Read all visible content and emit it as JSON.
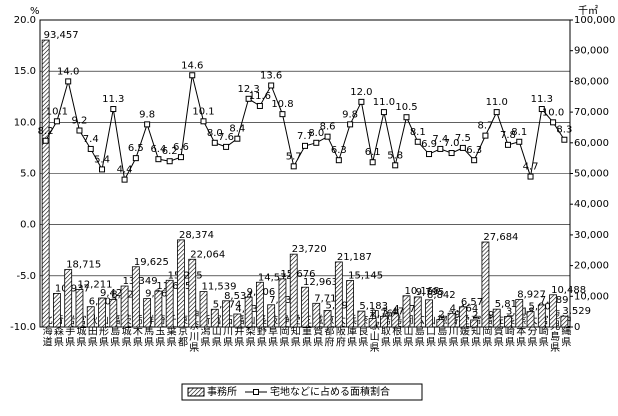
{
  "chart_data": {
    "type": "bar_line",
    "y_unit": "%",
    "y2_unit": "千㎡",
    "categories": [
      "北海道",
      "青森県",
      "岩手県",
      "宮城県",
      "秋田県",
      "山形県",
      "福島県",
      "茨城県",
      "栃木県",
      "群馬県",
      "埼玉県",
      "千葉県",
      "東京都",
      "神奈川県",
      "新潟県",
      "富山県",
      "石川県",
      "福井県",
      "山梨県",
      "長野県",
      "岐阜県",
      "静岡県",
      "愛知県",
      "三重県",
      "滋賀県",
      "京都府",
      "大阪府",
      "兵庫県",
      "奈良県",
      "和歌山県",
      "鳥取県",
      "島根県",
      "岡山県",
      "広島県",
      "山口県",
      "徳島県",
      "香川県",
      "愛媛県",
      "高知県",
      "福岡県",
      "佐賀県",
      "長崎県",
      "熊本県",
      "大分県",
      "宮崎県",
      "鹿児島県",
      "沖縄県"
    ],
    "series": [
      {
        "name": "事務所",
        "type": "bar",
        "axis": "y2",
        "color": "#000000",
        "values": [
          93457,
          10937,
          18715,
          12211,
          6607,
          9428,
          8925,
          13349,
          19625,
          9264,
          11685,
          15215,
          28374,
          22064,
          11539,
          5774,
          8534,
          4233,
          9706,
          14574,
          7237,
          15676,
          23720,
          12963,
          7719,
          5393,
          21187,
          15145,
          5183,
          2769,
          3470,
          4270,
          10168,
          9795,
          8842,
          2393,
          4464,
          6571,
          2290,
          27684,
          5811,
          3418,
          8927,
          5005,
          7189,
          10488,
          3529
        ],
        "value_labels": [
          "93,457",
          "10,937",
          "18,715",
          "12,211",
          "6,607",
          "9,428",
          "8,925",
          "13,349",
          "19,625",
          "9,264",
          "11,685",
          "15,215",
          "28,374",
          "22,064",
          "11,539",
          "5,774",
          "8,534",
          "4,233",
          "9,706",
          "14,574",
          "7,237",
          "15,676",
          "23,720",
          "12,963",
          "7,719",
          "5,393",
          "21,187",
          "15,145",
          "5,183",
          "2,769",
          "3,470",
          "4,270",
          "10,168",
          "9,795",
          "8,842",
          "2,393",
          "4,464",
          "6,571",
          "2,290",
          "27,684",
          "5,811",
          "3,418",
          "8,927",
          "5,005",
          "7,189",
          "10,488",
          "3,529"
        ]
      },
      {
        "name": "宅地などに占める面積割合",
        "type": "line",
        "color": "#000000",
        "values": [
          8.2,
          10.1,
          14.0,
          9.2,
          7.4,
          5.4,
          11.3,
          4.4,
          6.5,
          9.8,
          6.4,
          6.2,
          6.6,
          14.6,
          10.1,
          8.0,
          7.6,
          8.4,
          12.3,
          11.6,
          13.6,
          10.8,
          5.7,
          7.7,
          8.0,
          8.6,
          6.3,
          9.8,
          12.0,
          6.1,
          11.0,
          5.8,
          10.5,
          8.1,
          6.9,
          7.4,
          7.0,
          7.5,
          6.3,
          8.7,
          11.0,
          7.8,
          8.1,
          4.7,
          11.3,
          10.0,
          8.3
        ],
        "value_labels": [
          "8.2",
          "10.1",
          "14.0",
          "9.2",
          "7.4",
          "5.4",
          "11.3",
          "4.4",
          "6.5",
          "9.8",
          "6.4",
          "6.2",
          "6.6",
          "14.6",
          "10.1",
          "8.0",
          "7.6",
          "8.4",
          "12.3",
          "11.6",
          "13.6",
          "10.8",
          "5.7",
          "7.7",
          "8.0",
          "8.6",
          "6.3",
          "9.8",
          "12.0",
          "6.1",
          "11.0",
          "5.8",
          "10.5",
          "8.1",
          "6.9",
          "7.4",
          "7.0",
          "7.5",
          "6.3",
          "8.7",
          "11.0",
          "7.8",
          "8.1",
          "4.7",
          "11.3",
          "10.0",
          "8.3"
        ]
      }
    ],
    "ylim": [
      -10,
      20
    ],
    "yticks": [
      {
        "value": -10,
        "label": "-10.0"
      },
      {
        "value": -5,
        "label": "-5.0"
      },
      {
        "value": 0,
        "label": "0.0"
      },
      {
        "value": 5,
        "label": "5.0"
      },
      {
        "value": 10,
        "label": "10.0"
      },
      {
        "value": 15,
        "label": "15.0"
      },
      {
        "value": 20,
        "label": "20.0"
      }
    ],
    "y2lim": [
      0,
      100000
    ],
    "y2ticks": [
      0,
      {
        "value": 10000,
        "label": "10,000"
      },
      {
        "value": 20000,
        "label": "20,000"
      },
      {
        "value": 30000,
        "label": "30,000"
      },
      {
        "value": 40000,
        "label": "40,000"
      },
      {
        "value": 50000,
        "label": "50,000"
      },
      {
        "value": 60000,
        "label": "60,000"
      },
      {
        "value": 70000,
        "label": "70,000"
      },
      {
        "value": 80000,
        "label": "80,000"
      },
      {
        "value": 90000,
        "label": "90,000"
      },
      {
        "value": 100000,
        "label": "100,000"
      }
    ],
    "grid": true,
    "legend": "bottom"
  }
}
